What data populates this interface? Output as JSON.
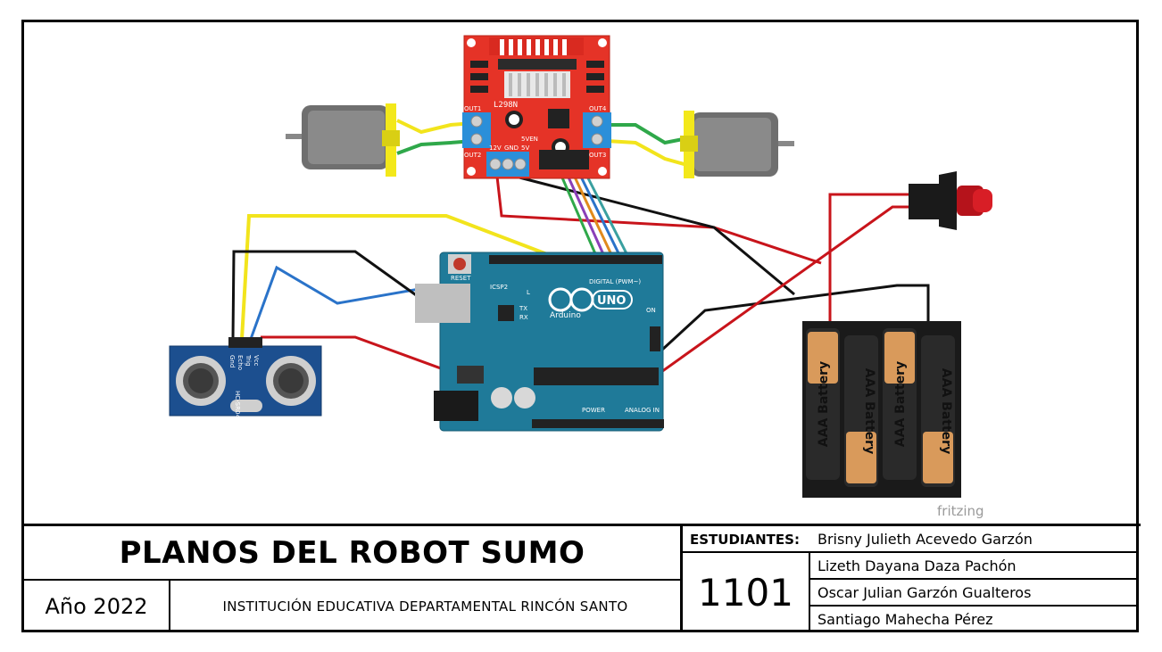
{
  "diagram": {
    "watermark": "fritzing",
    "driver_label": "L298N",
    "driver_pins": {
      "out1": "OUT1",
      "out2": "OUT2",
      "out3": "OUT3",
      "out4": "OUT4",
      "sven": "5VEN",
      "v12": "12V",
      "gnd": "GND",
      "v5": "5V"
    },
    "sensor_label": "HC-SR04",
    "sensor_pins": [
      "Vcc",
      "Trig",
      "Echo",
      "Gnd"
    ],
    "arduino": {
      "logo": "UNO",
      "brand": "Arduino",
      "reset": "RESET",
      "icsp2": "ICSP2",
      "digital": "DIGITAL (PWM~)",
      "analog": "ANALOG IN",
      "power": "POWER",
      "on": "ON",
      "tx": "TX",
      "rx": "RX",
      "l": "L"
    },
    "battery_labels": [
      "AAA Battery",
      "AAA Battery",
      "AAA Battery",
      "AAA Battery"
    ],
    "colors": {
      "driver_board": "#e53327",
      "arduino_board": "#1f7a99",
      "sensor_board": "#1c4f8f",
      "wire_red": "#c8141b",
      "wire_black": "#111111",
      "wire_yellow": "#f2e41c",
      "wire_blue": "#2a73c9",
      "wire_green": "#2fa84a"
    }
  },
  "title_block": {
    "title": "PLANOS DEL ROBOT SUMO",
    "year": "Año 2022",
    "institution": "INSTITUCIÓN EDUCATIVA DEPARTAMENTAL RINCÓN SANTO",
    "students_label": "ESTUDIANTES:",
    "group": "1101",
    "students": [
      "Brisny Julieth Acevedo Garzón",
      "Lizeth Dayana Daza Pachón",
      "Oscar Julian Garzón Gualteros",
      "Santiago Mahecha Pérez"
    ]
  }
}
